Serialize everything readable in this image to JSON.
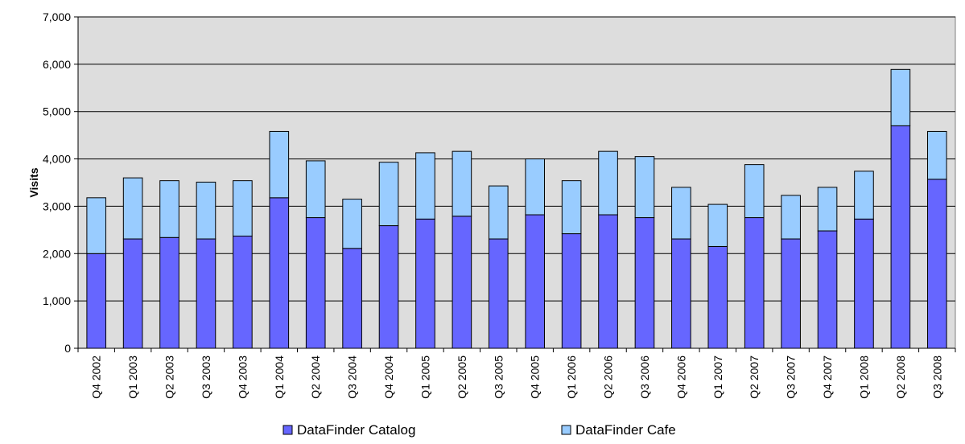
{
  "chart_data": {
    "type": "bar",
    "stacked": true,
    "categories": [
      "Q4 2002",
      "Q1 2003",
      "Q2 2003",
      "Q3 2003",
      "Q4 2003",
      "Q1 2004",
      "Q2 2004",
      "Q3 2004",
      "Q4 2004",
      "Q1 2005",
      "Q2 2005",
      "Q3 2005",
      "Q4 2005",
      "Q1 2006",
      "Q2 2006",
      "Q3 2006",
      "Q4 2006",
      "Q1 2007",
      "Q2 2007",
      "Q3 2007",
      "Q4 2007",
      "Q1 2008",
      "Q2 2008",
      "Q3 2008"
    ],
    "series": [
      {
        "name": "DataFinder Catalog",
        "color": "#6666ff",
        "values": [
          2000,
          2310,
          2340,
          2310,
          2370,
          3180,
          2760,
          2110,
          2590,
          2730,
          2790,
          2310,
          2820,
          2420,
          2820,
          2760,
          2310,
          2150,
          2760,
          2310,
          2480,
          2730,
          4700,
          3570
        ]
      },
      {
        "name": "DataFinder Cafe",
        "color": "#99ccff",
        "values": [
          1180,
          1290,
          1200,
          1200,
          1170,
          1400,
          1200,
          1040,
          1340,
          1400,
          1370,
          1120,
          1180,
          1120,
          1340,
          1290,
          1090,
          890,
          1120,
          920,
          920,
          1010,
          1190,
          1010
        ]
      }
    ],
    "xlabel": "",
    "ylabel": "Visits",
    "ylim": [
      0,
      7000
    ],
    "yticks": [
      0,
      1000,
      2000,
      3000,
      4000,
      5000,
      6000,
      7000
    ],
    "ytick_labels": [
      "0",
      "1,000",
      "2,000",
      "3,000",
      "4,000",
      "5,000",
      "6,000",
      "7,000"
    ],
    "grid": true,
    "plot_background": "#dddddd",
    "legend_position": "bottom"
  }
}
